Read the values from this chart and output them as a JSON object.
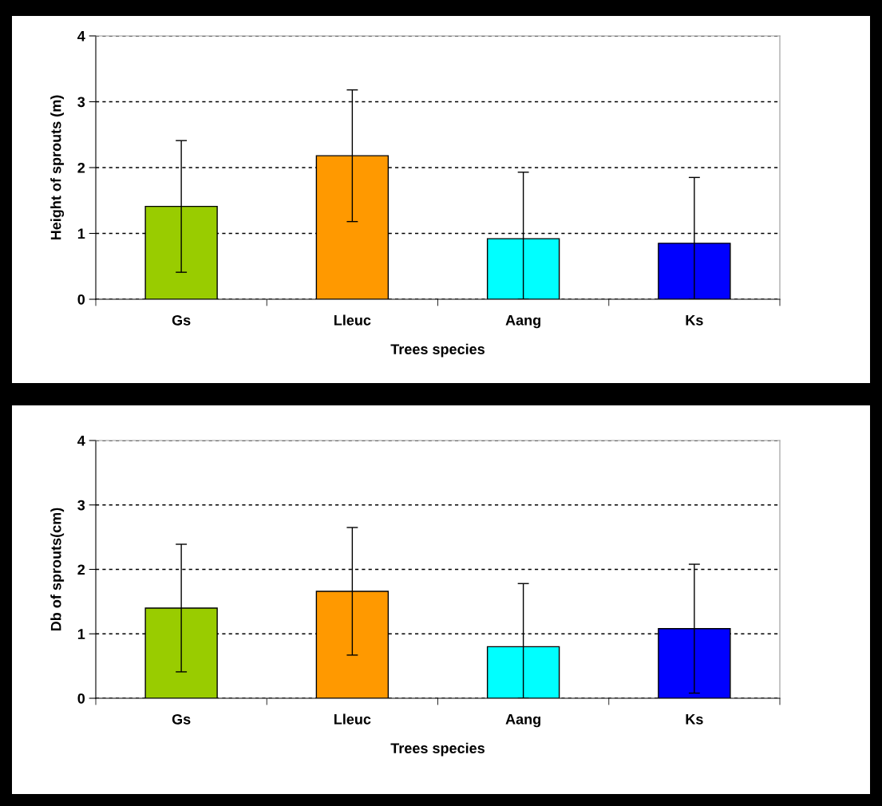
{
  "chart_data": [
    {
      "type": "bar",
      "categories": [
        "Gs",
        "Lleuc",
        "Aang",
        "Ks"
      ],
      "values": [
        1.41,
        2.18,
        0.92,
        0.85
      ],
      "colors": [
        "#99cc00",
        "#ff9900",
        "#00ffff",
        "#0000ff"
      ],
      "errors": [
        1.0,
        1.0,
        [
          0,
          1.93
        ],
        [
          0,
          1.85
        ]
      ],
      "ylim": [
        0,
        4
      ],
      "yticks": [
        0,
        1,
        2,
        3,
        4
      ],
      "grid": "y",
      "line_style": "dashed",
      "xlabel": "Trees species",
      "ylabel": "Height of sprouts (m)"
    },
    {
      "type": "bar",
      "categories": [
        "Gs",
        "Lleuc",
        "Aang",
        "Ks"
      ],
      "values": [
        1.4,
        1.66,
        0.8,
        1.08
      ],
      "colors": [
        "#99cc00",
        "#ff9900",
        "#00ffff",
        "#0000ff"
      ],
      "errors": [
        0.99,
        0.99,
        [
          0,
          1.78
        ],
        1.0
      ],
      "ylim": [
        0,
        4
      ],
      "yticks": [
        0,
        1,
        2,
        3,
        4
      ],
      "grid": "y",
      "line_style": "dashed",
      "xlabel": "Trees species",
      "ylabel": "Db of sprouts(cm)"
    }
  ]
}
